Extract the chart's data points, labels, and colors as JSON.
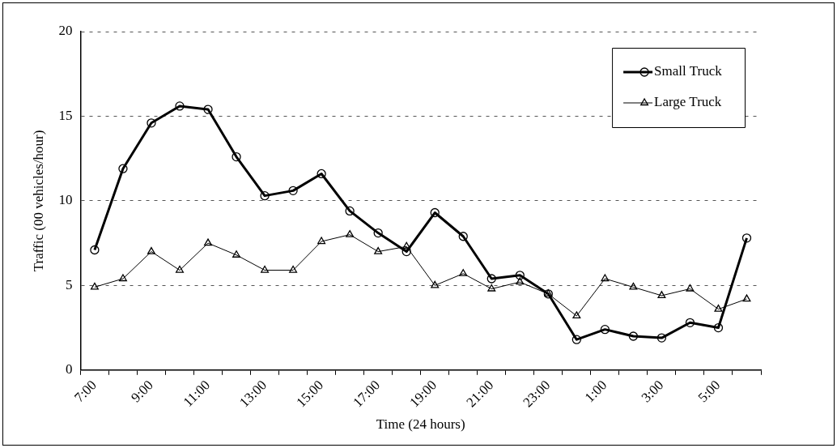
{
  "chart_data": {
    "type": "line",
    "xlabel": "Time (24 hours)",
    "ylabel": "Traffic (00 vehicles/hour)",
    "categories": [
      "7:00",
      null,
      "9:00",
      null,
      "11:00",
      null,
      "13:00",
      null,
      "15:00",
      null,
      "17:00",
      null,
      "19:00",
      null,
      "21:00",
      null,
      "23:00",
      null,
      "1:00",
      null,
      "3:00",
      null,
      "5:00",
      null
    ],
    "series": [
      {
        "name": "Small Truck",
        "color": "#000000",
        "marker": "circle",
        "values": [
          7.1,
          11.9,
          14.6,
          15.6,
          15.4,
          12.6,
          10.3,
          10.6,
          11.6,
          9.4,
          8.1,
          7.0,
          9.3,
          7.9,
          5.4,
          5.6,
          4.5,
          1.8,
          2.4,
          2.0,
          1.9,
          2.8,
          2.5,
          7.8
        ]
      },
      {
        "name": "Large Truck",
        "color": "#000000",
        "marker": "triangle",
        "values": [
          4.9,
          5.4,
          7.0,
          5.9,
          7.5,
          6.8,
          5.9,
          5.9,
          7.6,
          8.0,
          7.0,
          7.3,
          5.0,
          5.7,
          4.8,
          5.2,
          4.5,
          3.2,
          5.4,
          4.9,
          4.4,
          4.8,
          3.6,
          4.2
        ]
      }
    ],
    "ylim": [
      0,
      20
    ],
    "yticks": [
      0,
      5,
      10,
      15,
      20
    ],
    "grid": "y",
    "legend": "top right",
    "line_style": "solid"
  }
}
